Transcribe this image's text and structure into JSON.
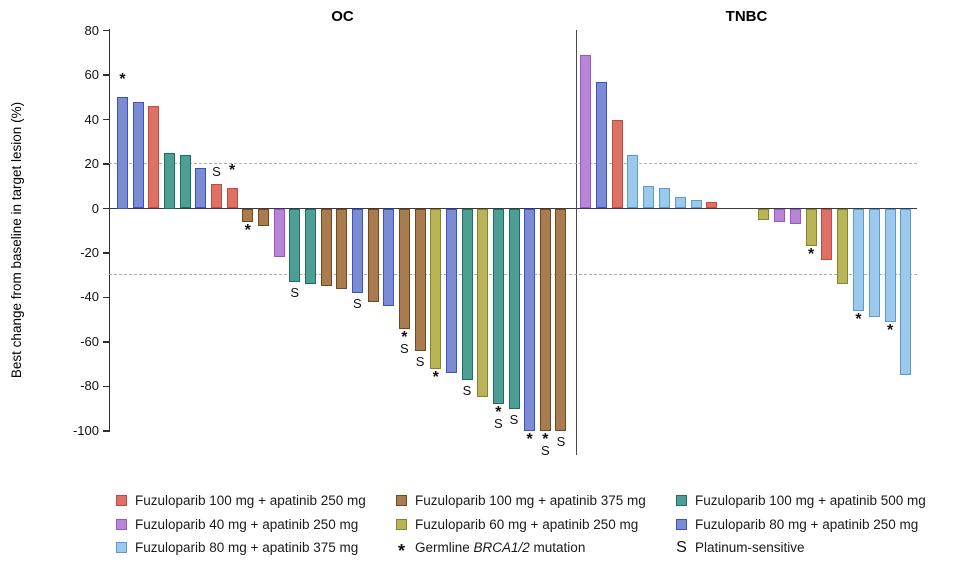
{
  "chart_data": {
    "type": "bar",
    "subtype": "waterfall",
    "ylabel": "Best change from baseline in target lesion (%)",
    "ylim": [
      -100,
      80
    ],
    "yticks": [
      80,
      60,
      40,
      20,
      0,
      -20,
      -40,
      -60,
      -80,
      -100
    ],
    "reference_lines": [
      20,
      -30
    ],
    "grid": "off",
    "legend_position": "bottom",
    "marker_meanings": {
      "*": "Germline BRCA1/2 mutation",
      "S": "Platinum-sensitive"
    },
    "groups": {
      "f100a250": {
        "label": "Fuzuloparib 100 mg + apatinib 250 mg",
        "fill": "#dd7166",
        "border": "#c4493e"
      },
      "f100a375": {
        "label": "Fuzuloparib 100 mg + apatinib 375 mg",
        "fill": "#a87c4e",
        "border": "#71491f"
      },
      "f100a500": {
        "label": "Fuzuloparib 100 mg + apatinib 500 mg",
        "fill": "#4d9f94",
        "border": "#1f6e63"
      },
      "f40a250": {
        "label": "Fuzuloparib 40 mg + apatinib 250 mg",
        "fill": "#b787d5",
        "border": "#9655c8"
      },
      "f60a250": {
        "label": "Fuzuloparib 60 mg + apatinib 250 mg",
        "fill": "#b8b457",
        "border": "#86842a"
      },
      "f80a250": {
        "label": "Fuzuloparib 80 mg + apatinib 250 mg",
        "fill": "#7b8cd2",
        "border": "#3e50c5"
      },
      "f80a375": {
        "label": "Fuzuloparib 80 mg + apatinib 375 mg",
        "fill": "#9cc8ec",
        "border": "#5b9bd5"
      }
    },
    "panels": [
      {
        "name": "OC",
        "bars": [
          {
            "value": 50,
            "group": "f80a250",
            "marker": "*"
          },
          {
            "value": 48,
            "group": "f80a250"
          },
          {
            "value": 46,
            "group": "f100a250"
          },
          {
            "value": 25,
            "group": "f100a500"
          },
          {
            "value": 24,
            "group": "f100a500"
          },
          {
            "value": 18,
            "group": "f80a250"
          },
          {
            "value": 11,
            "group": "f100a250",
            "marker": "S"
          },
          {
            "value": 9,
            "group": "f100a250",
            "marker": "*"
          },
          {
            "value": -6,
            "group": "f100a375",
            "marker": "*"
          },
          {
            "value": -8,
            "group": "f100a375"
          },
          {
            "value": -22,
            "group": "f40a250"
          },
          {
            "value": -33,
            "group": "f100a500",
            "marker": "S"
          },
          {
            "value": -34,
            "group": "f100a500"
          },
          {
            "value": -35,
            "group": "f100a375"
          },
          {
            "value": -36,
            "group": "f100a375"
          },
          {
            "value": -38,
            "group": "f80a250",
            "marker": "S"
          },
          {
            "value": -42,
            "group": "f100a375"
          },
          {
            "value": -44,
            "group": "f80a250"
          },
          {
            "value": -54,
            "group": "f100a375",
            "marker": "*S"
          },
          {
            "value": -64,
            "group": "f100a375",
            "marker": "S"
          },
          {
            "value": -72,
            "group": "f60a250",
            "marker": "*"
          },
          {
            "value": -74,
            "group": "f80a250"
          },
          {
            "value": -77,
            "group": "f100a500",
            "marker": "S"
          },
          {
            "value": -85,
            "group": "f60a250"
          },
          {
            "value": -88,
            "group": "f100a500",
            "marker": "*S"
          },
          {
            "value": -90,
            "group": "f100a500",
            "marker": "S"
          },
          {
            "value": -100,
            "group": "f80a250",
            "marker": "*"
          },
          {
            "value": -100,
            "group": "f100a375",
            "marker": "*S"
          },
          {
            "value": -100,
            "group": "f100a375",
            "marker": "S"
          }
        ]
      },
      {
        "name": "TNBC",
        "gap_after_index": 8,
        "bars": [
          {
            "value": 69,
            "group": "f40a250"
          },
          {
            "value": 57,
            "group": "f80a250"
          },
          {
            "value": 40,
            "group": "f100a250"
          },
          {
            "value": 24,
            "group": "f80a375"
          },
          {
            "value": 10,
            "group": "f80a375"
          },
          {
            "value": 9,
            "group": "f80a375"
          },
          {
            "value": 5,
            "group": "f80a375"
          },
          {
            "value": 4,
            "group": "f80a375"
          },
          {
            "value": 3,
            "group": "f100a250"
          },
          {
            "value": -5,
            "group": "f60a250"
          },
          {
            "value": -6,
            "group": "f40a250"
          },
          {
            "value": -7,
            "group": "f40a250"
          },
          {
            "value": -17,
            "group": "f60a250",
            "marker": "*"
          },
          {
            "value": -23,
            "group": "f100a250"
          },
          {
            "value": -34,
            "group": "f60a250"
          },
          {
            "value": -46,
            "group": "f80a375",
            "marker": "*"
          },
          {
            "value": -49,
            "group": "f80a375"
          },
          {
            "value": -51,
            "group": "f80a375",
            "marker": "*"
          },
          {
            "value": -75,
            "group": "f80a375"
          }
        ]
      }
    ]
  },
  "legend": {
    "brca": {
      "symbol": "*",
      "prefix": "Germline ",
      "gene": "BRCA1/2",
      "suffix": " mutation"
    },
    "platinum": {
      "symbol": "S",
      "label": "Platinum-sensitive"
    }
  }
}
